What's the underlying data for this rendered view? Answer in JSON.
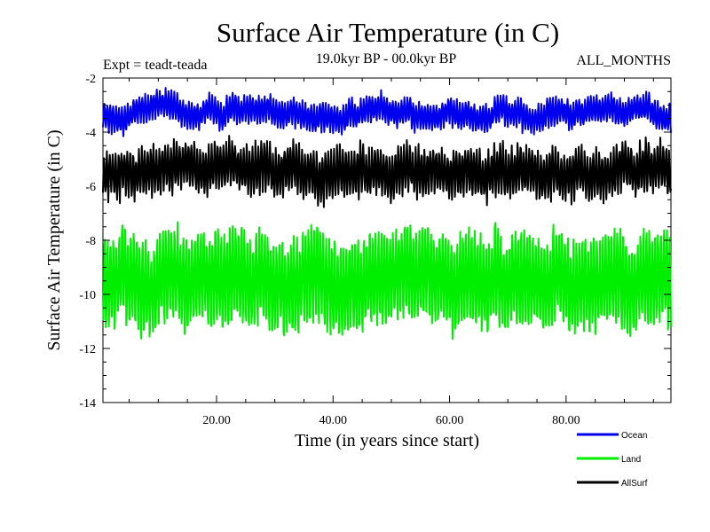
{
  "chart_data": {
    "type": "line",
    "title": "Surface Air Temperature (in C)",
    "subtitle": "19.0kyr BP - 00.0kyr BP",
    "experiment": "Expt = teadt-teada",
    "period": "ALL_MONTHS",
    "xlabel": "Time (in years since start)",
    "ylabel": "Surface Air Temperature (in C)",
    "xlim": [
      0.5,
      98
    ],
    "ylim": [
      -14,
      -2
    ],
    "xticks": [
      20,
      40,
      60,
      80
    ],
    "xtick_labels": [
      "20.00",
      "40.00",
      "60.00",
      "80.00"
    ],
    "yticks": [
      -2,
      -4,
      -6,
      -8,
      -10,
      -12,
      -14
    ],
    "ytick_labels": [
      "-2",
      "-4",
      "-6",
      "-8",
      "-10",
      "-12",
      "-14"
    ],
    "x_start": 0.5,
    "x_end": 98,
    "samples_per_year": 12,
    "series": [
      {
        "name": "Ocean",
        "color": "#0000ee",
        "mean": -3.3,
        "seasonal_amplitude": 0.45,
        "interannual_amplitude": 0.2,
        "seed": 11
      },
      {
        "name": "Land",
        "color": "#00ee00",
        "mean": -9.4,
        "seasonal_amplitude": 1.6,
        "interannual_amplitude": 0.35,
        "seed": 23
      },
      {
        "name": "AllSurf",
        "color": "#000000",
        "mean": -5.5,
        "seasonal_amplitude": 0.8,
        "interannual_amplitude": 0.25,
        "seed": 37
      }
    ]
  }
}
